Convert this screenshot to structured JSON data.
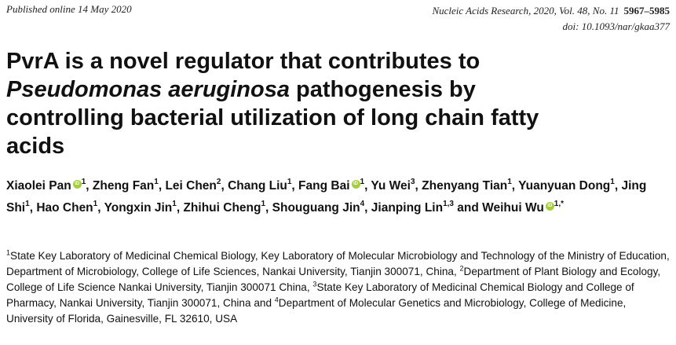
{
  "header": {
    "published": "Published online 14 May 2020",
    "journal": "Nucleic Acids Research, 2020, Vol. 48, No. 11",
    "pages": "5967–5985",
    "doi": "doi: 10.1093/nar/gkaa377"
  },
  "title": {
    "line1": "PvrA is a novel regulator that contributes to",
    "italic": "Pseudomonas aeruginosa",
    "line2_rest": " pathogenesis by",
    "line3": "controlling bacterial utilization of long chain fatty",
    "line4": "acids"
  },
  "authors": [
    {
      "name": "Xiaolei Pan",
      "orcid": true,
      "sup": "1"
    },
    {
      "name": "Zheng Fan",
      "orcid": false,
      "sup": "1"
    },
    {
      "name": "Lei Chen",
      "orcid": false,
      "sup": "2"
    },
    {
      "name": "Chang Liu",
      "orcid": false,
      "sup": "1"
    },
    {
      "name": "Fang Bai",
      "orcid": true,
      "sup": "1"
    },
    {
      "name": "Yu Wei",
      "orcid": false,
      "sup": "3"
    },
    {
      "name": "Zhenyang Tian",
      "orcid": false,
      "sup": "1"
    },
    {
      "name": "Yuanyuan Dong",
      "orcid": false,
      "sup": "1"
    },
    {
      "name": "Jing Shi",
      "orcid": false,
      "sup": "1"
    },
    {
      "name": "Hao Chen",
      "orcid": false,
      "sup": "1"
    },
    {
      "name": "Yongxin Jin",
      "orcid": false,
      "sup": "1"
    },
    {
      "name": "Zhihui Cheng",
      "orcid": false,
      "sup": "1"
    },
    {
      "name": "Shouguang Jin",
      "orcid": false,
      "sup": "4"
    },
    {
      "name": "Jianping Lin",
      "orcid": false,
      "sup": "1,3"
    },
    {
      "name": "Weihui Wu",
      "orcid": true,
      "sup": "1,*"
    }
  ],
  "author_and": "and",
  "orcid_glyph": "iD",
  "affiliations": [
    {
      "sup": "1",
      "text": "State Key Laboratory of Medicinal Chemical Biology, Key Laboratory of Molecular Microbiology and Technology of the Ministry of Education, Department of Microbiology, College of Life Sciences, Nankai University, Tianjin 300071, China, "
    },
    {
      "sup": "2",
      "text": "Department of Plant Biology and Ecology, College of Life Science Nankai University, Tianjin 300071 China, "
    },
    {
      "sup": "3",
      "text": "State Key Laboratory of Medicinal Chemical Biology and College of Pharmacy, Nankai University, Tianjin 300071, China and "
    },
    {
      "sup": "4",
      "text": "Department of Molecular Genetics and Microbiology, College of Medicine, University of Florida, Gainesville, FL 32610, USA"
    }
  ]
}
